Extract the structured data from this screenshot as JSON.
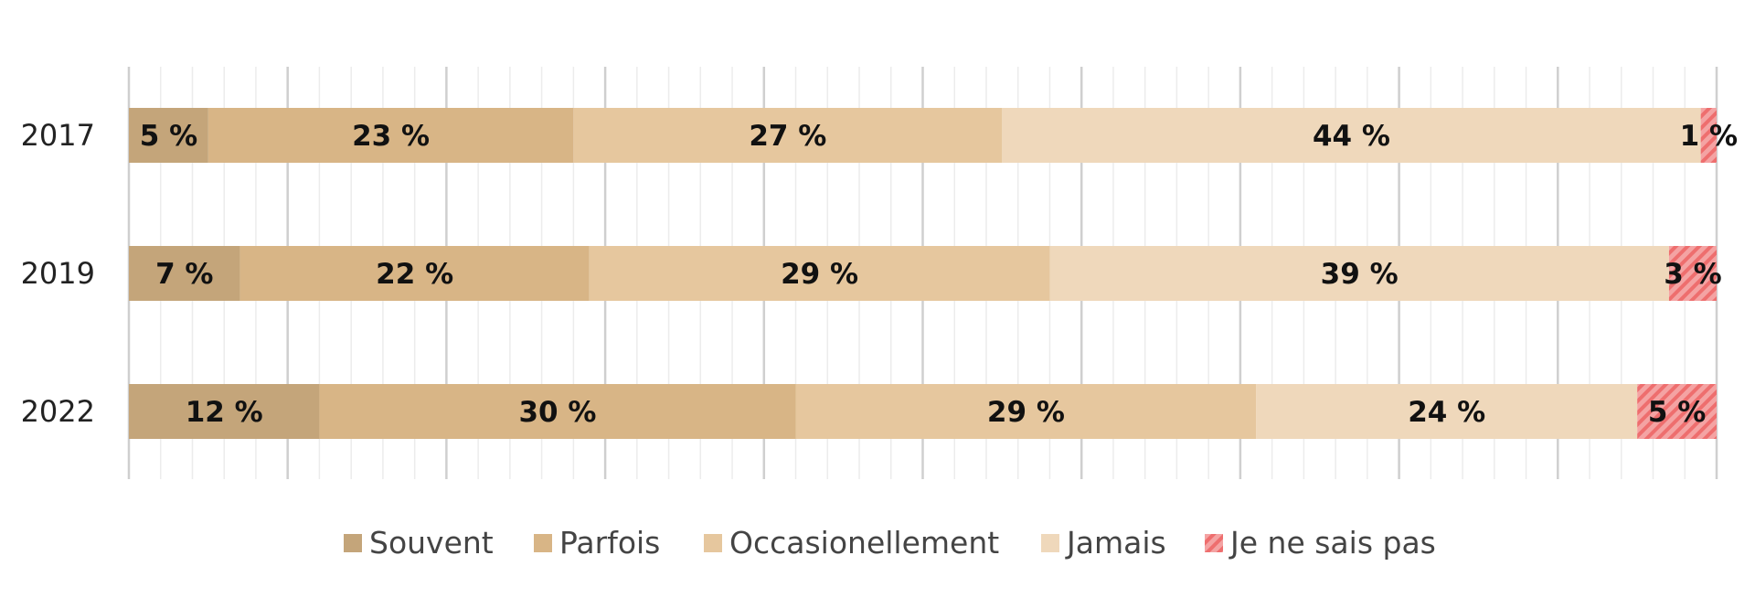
{
  "chart_data": {
    "type": "bar",
    "orientation": "horizontal",
    "stacked": true,
    "categories": [
      "2017",
      "2019",
      "2022"
    ],
    "series": [
      {
        "name": "Souvent",
        "values": [
          5,
          7,
          12
        ],
        "labels": [
          "5 %",
          "7 %",
          "12 %"
        ],
        "color": "#c4a57a"
      },
      {
        "name": "Parfois",
        "values": [
          23,
          22,
          30
        ],
        "labels": [
          "23 %",
          "22 %",
          "30 %"
        ],
        "color": "#d8b586"
      },
      {
        "name": "Occasionellement",
        "values": [
          27,
          29,
          29
        ],
        "labels": [
          "27 %",
          "29 %",
          "29 %"
        ],
        "color": "#e6c79e"
      },
      {
        "name": "Jamais",
        "values": [
          44,
          39,
          24
        ],
        "labels": [
          "44 %",
          "39 %",
          "24 %"
        ],
        "color": "#efd8bb"
      },
      {
        "name": "Je ne sais pas",
        "values": [
          1,
          3,
          5
        ],
        "labels": [
          "1 %",
          "3 %",
          "5 %"
        ],
        "color": "#f08080",
        "pattern": "hatch"
      }
    ],
    "xlim": [
      0,
      100
    ],
    "grid": true,
    "legend": "bottom"
  }
}
